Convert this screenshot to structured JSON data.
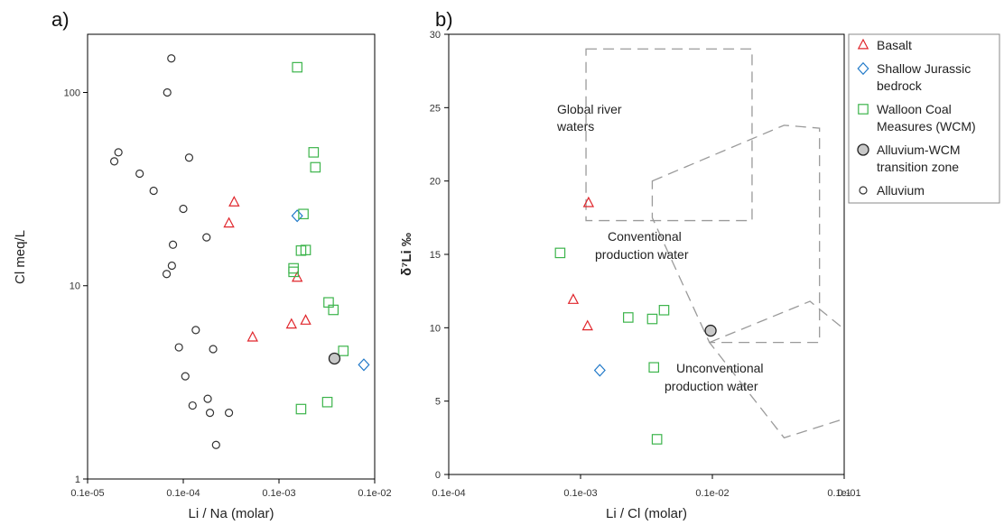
{
  "chart_data": [
    {
      "type": "scatter",
      "panel_label": "a)",
      "xlabel": "Li / Na (molar)",
      "ylabel": "Cl meq/L",
      "xscale": "log",
      "yscale": "log",
      "xlim": [
        1e-05,
        0.01
      ],
      "ylim": [
        1,
        200
      ],
      "xticks": [
        "0.1e-05",
        "0.1e-04",
        "0.1e-03",
        "0.1e-02"
      ],
      "yticks": [
        "1",
        "10",
        "100"
      ],
      "series": [
        {
          "name": "Basalt",
          "marker": "triangle",
          "color": "#e0252b",
          "points": [
            [
              0.00034,
              27
            ],
            [
              0.0003,
              21
            ],
            [
              0.00053,
              5.4
            ],
            [
              0.00135,
              6.3
            ],
            [
              0.0019,
              6.6
            ],
            [
              0.00155,
              11
            ]
          ]
        },
        {
          "name": "Shallow Jurassic bedrock",
          "marker": "diamond",
          "color": "#1f78c8",
          "points": [
            [
              0.00155,
              23
            ],
            [
              0.0077,
              3.9
            ]
          ]
        },
        {
          "name": "Walloon Coal Measures (WCM)",
          "marker": "square",
          "color": "#3cb44b",
          "points": [
            [
              0.00155,
              135
            ],
            [
              0.0023,
              49
            ],
            [
              0.0024,
              41
            ],
            [
              0.0018,
              23.5
            ],
            [
              0.0017,
              15.2
            ],
            [
              0.0019,
              15.3
            ],
            [
              0.00142,
              12.3
            ],
            [
              0.00142,
              11.8
            ],
            [
              0.0033,
              8.2
            ],
            [
              0.0037,
              7.5
            ],
            [
              0.0047,
              4.6
            ],
            [
              0.0032,
              2.5
            ],
            [
              0.0017,
              2.3
            ]
          ]
        },
        {
          "name": "Alluvium-WCM transition zone",
          "marker": "filled-circle",
          "color": "#555555",
          "points": [
            [
              0.0038,
              4.2
            ]
          ]
        },
        {
          "name": "Alluvium",
          "marker": "circle",
          "color": "#333333",
          "points": [
            [
              7.5e-05,
              150
            ],
            [
              6.8e-05,
              100
            ],
            [
              1.9e-05,
              44
            ],
            [
              2.1e-05,
              49
            ],
            [
              3.5e-05,
              38
            ],
            [
              4.9e-05,
              31
            ],
            [
              0.000115,
              46
            ],
            [
              0.0001,
              25
            ],
            [
              7.8e-05,
              16.3
            ],
            [
              7.6e-05,
              12.7
            ],
            [
              6.7e-05,
              11.5
            ],
            [
              0.000175,
              17.8
            ],
            [
              0.000135,
              5.9
            ],
            [
              9e-05,
              4.8
            ],
            [
              0.000205,
              4.7
            ],
            [
              0.000105,
              3.4
            ],
            [
              0.000125,
              2.4
            ],
            [
              0.00018,
              2.6
            ],
            [
              0.00019,
              2.2
            ],
            [
              0.0003,
              2.2
            ],
            [
              0.00022,
              1.5
            ]
          ]
        }
      ]
    },
    {
      "type": "scatter",
      "panel_label": "b)",
      "xlabel": "Li / Cl (molar)",
      "ylabel": "δ⁷Li ‰",
      "xscale": "log",
      "yscale": "linear",
      "xlim": [
        0.0001,
        0.1
      ],
      "ylim": [
        0,
        30
      ],
      "xticks": [
        "0.1e-04",
        "0.1e-03",
        "0.1e-02",
        "0.1e-01",
        "0.1"
      ],
      "yticks": [
        "0",
        "5",
        "10",
        "15",
        "20",
        "25",
        "30"
      ],
      "series": [
        {
          "name": "Basalt",
          "marker": "triangle",
          "color": "#e0252b",
          "points": [
            [
              0.00115,
              18.5
            ],
            [
              0.00088,
              11.9
            ],
            [
              0.00113,
              10.1
            ]
          ]
        },
        {
          "name": "Shallow Jurassic bedrock",
          "marker": "diamond",
          "color": "#1f78c8",
          "points": [
            [
              0.0014,
              7.1
            ]
          ]
        },
        {
          "name": "Walloon Coal Measures (WCM)",
          "marker": "square",
          "color": "#3cb44b",
          "points": [
            [
              0.0007,
              15.1
            ],
            [
              0.0023,
              10.7
            ],
            [
              0.0035,
              10.6
            ],
            [
              0.0043,
              11.2
            ],
            [
              0.0036,
              7.3
            ],
            [
              0.0038,
              2.4
            ]
          ]
        },
        {
          "name": "Alluvium-WCM transition zone",
          "marker": "filled-circle",
          "color": "#555555",
          "points": [
            [
              0.0097,
              9.8
            ]
          ]
        }
      ],
      "annotations": [
        {
          "text": [
            "Global river",
            "waters"
          ]
        },
        {
          "text": [
            "Conventional",
            "production water"
          ]
        },
        {
          "text": [
            "Unconventional",
            "production water"
          ]
        }
      ],
      "zones": [
        {
          "label": "Global river waters",
          "polygon": [
            [
              0.0011,
              29
            ],
            [
              0.02,
              29
            ],
            [
              0.02,
              17.3
            ],
            [
              0.0011,
              17.3
            ]
          ]
        },
        {
          "label": "Conventional production water",
          "polygon": [
            [
              0.0035,
              20
            ],
            [
              0.035,
              23.8
            ],
            [
              0.065,
              23.6
            ],
            [
              0.065,
              9
            ],
            [
              0.0095,
              9
            ],
            [
              0.0035,
              17.5
            ]
          ]
        },
        {
          "label": "Unconventional production water",
          "polygon": [
            [
              0.0095,
              9
            ],
            [
              0.055,
              11.8
            ],
            [
              0.4,
              5.5
            ],
            [
              0.035,
              2.5
            ]
          ]
        }
      ]
    }
  ],
  "legend": {
    "placement": "right",
    "items": [
      {
        "label": [
          "Basalt"
        ],
        "marker": "triangle",
        "color": "#e0252b"
      },
      {
        "label": [
          "Shallow Jurassic",
          "bedrock"
        ],
        "marker": "diamond",
        "color": "#1f78c8"
      },
      {
        "label": [
          "Walloon Coal",
          "Measures (WCM)"
        ],
        "marker": "square",
        "color": "#3cb44b"
      },
      {
        "label": [
          "Alluvium-WCM",
          "transition zone"
        ],
        "marker": "filled-circle",
        "color": "#555555"
      },
      {
        "label": [
          "Alluvium"
        ],
        "marker": "circle",
        "color": "#333333"
      }
    ]
  }
}
